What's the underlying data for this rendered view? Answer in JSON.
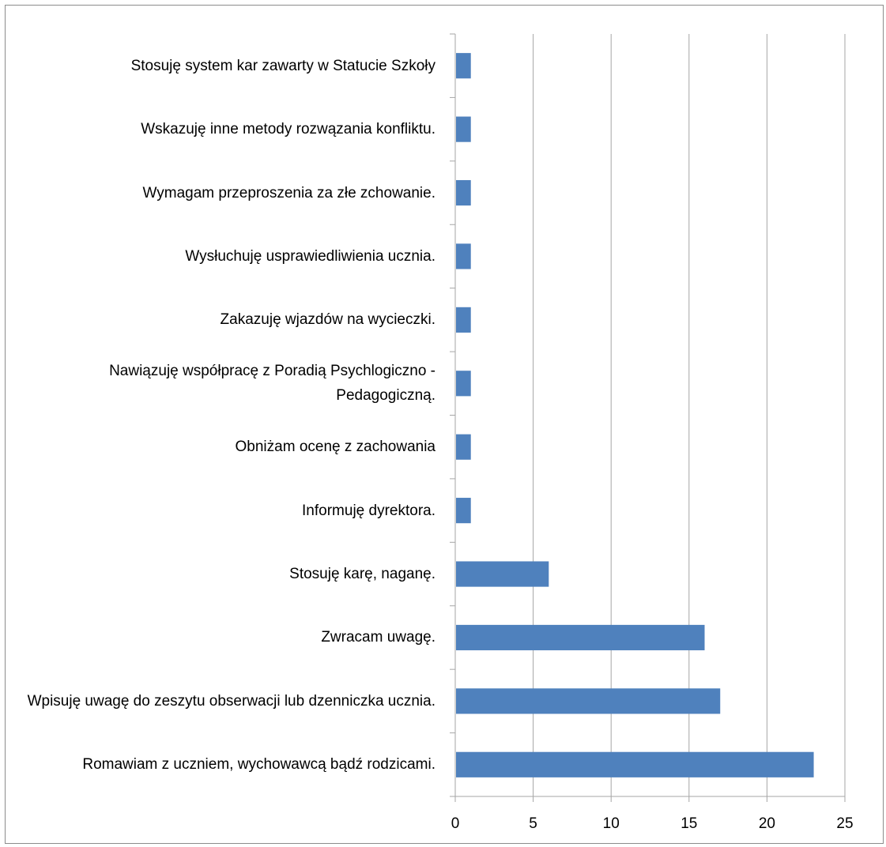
{
  "chart_data": {
    "type": "bar",
    "orientation": "horizontal",
    "categories": [
      "Stosuję system kar zawarty w Statucie Szkoły",
      "Wskazuję inne metody rozwązania konfliktu.",
      "Wymagam przeproszenia za złe zchowanie.",
      "Wysłuchuję usprawiedliwienia ucznia.",
      "Zakazuję wjazdów na wycieczki.",
      "Nawiązuję współpracę z Poradią Psychlogiczno - Pedagogiczną.",
      "Obniżam ocenę z zachowania",
      "Informuję dyrektora.",
      "Stosuję karę, naganę.",
      "Zwracam uwagę.",
      "Wpisuję uwagę do zeszytu obserwacji lub dzenniczka ucznia.",
      "Romawiam z uczniem, wychowawcą bądź rodzicami."
    ],
    "values": [
      1,
      1,
      1,
      1,
      1,
      1,
      1,
      1,
      6,
      16,
      17,
      23
    ],
    "xlim": [
      0,
      25
    ],
    "xticks": [
      "0",
      "5",
      "10",
      "15",
      "20",
      "25"
    ],
    "grid": true,
    "bar_color": "#4f81bd",
    "grid_color": "#a6a6a6"
  }
}
